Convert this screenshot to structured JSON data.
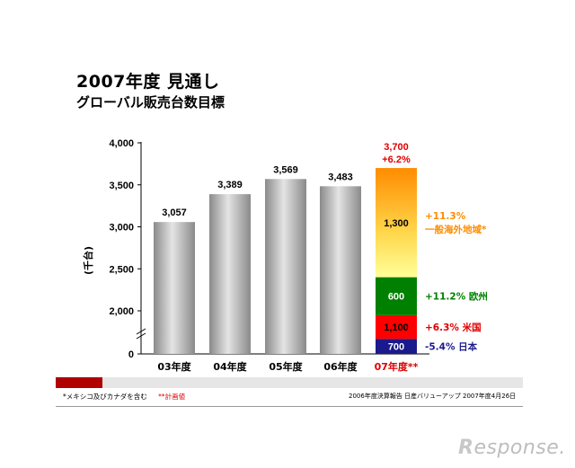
{
  "header": {
    "title": "2007年度 見通し",
    "subtitle": "グローバル販売台数目標"
  },
  "chart_data": {
    "type": "bar",
    "ylabel": "(千台)",
    "ylim": [
      0,
      4000
    ],
    "yticks": [
      "0",
      "2,000",
      "2,500",
      "3,000",
      "3,500",
      "4,000"
    ],
    "categories": [
      "03年度",
      "04年度",
      "05年度",
      "06年度",
      "07年度**"
    ],
    "values": [
      3057,
      3389,
      3569,
      3483,
      3700
    ],
    "value_labels": [
      "3,057",
      "3,389",
      "3,569",
      "3,483",
      "3,700"
    ],
    "total_change": "+6.2%",
    "stack_2007": [
      {
        "label": "700",
        "value": 700,
        "color": "#1a1a8c",
        "label_color": "#ffffff",
        "annotation": "-5.4% 日本",
        "annotation_color": "#1a1a8c"
      },
      {
        "label": "1,100",
        "value": 1100,
        "color": "#ff0000",
        "label_color": "#000000",
        "annotation": "+6.3% 米国",
        "annotation_color": "#e00000"
      },
      {
        "label": "600",
        "value": 600,
        "color": "#008000",
        "label_color": "#ffffff",
        "annotation": "+11.2% 欧州",
        "annotation_color": "#008000"
      },
      {
        "label": "1,300",
        "value": 1300,
        "color": "#ffcc33",
        "label_color": "#000000",
        "annotation": "+11.3%",
        "annotation2": "一般海外地域*",
        "annotation_color": "#ff8c00"
      }
    ],
    "colors": {
      "gray_bar": "#b8b8b8",
      "highlight": "#e00000"
    }
  },
  "footer": {
    "note": "*メキシコ及びカナダを含む",
    "plan": "**計画値",
    "source": "2006年度決算報告  日産バリューアップ  2007年度4月26日"
  },
  "brand": {
    "r": "R",
    "text": "esponse."
  }
}
